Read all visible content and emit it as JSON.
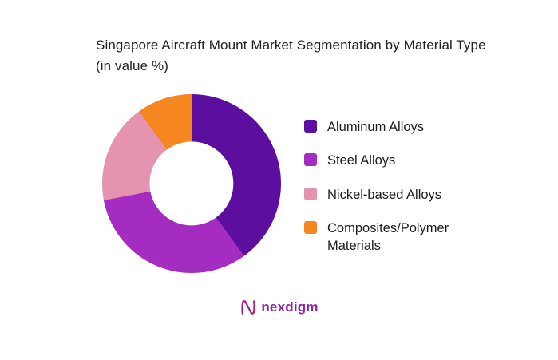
{
  "page": {
    "background": "#ffffff"
  },
  "chart_data": {
    "type": "pie",
    "variant": "donut",
    "title": "Singapore Aircraft Mount Market Segmentation by Material Type (in value %)",
    "categories": [
      "Aluminum Alloys",
      "Steel Alloys",
      "Nickel-based Alloys",
      "Composites/Polymer Materials"
    ],
    "values": [
      40,
      32,
      18,
      10
    ],
    "colors": [
      "#5C0E9E",
      "#A52CC0",
      "#E693B0",
      "#F6861F"
    ],
    "units": "percent",
    "start_angle_deg": 0,
    "direction": "clockwise",
    "inner_radius_ratio": 0.47,
    "legend_position": "right",
    "data_labels_shown": false
  },
  "footer": {
    "logo_text": "nexdigm",
    "logo_color": "#8E24AA",
    "logo_gradient_start": "#7B1FA2",
    "logo_gradient_end": "#D81B60"
  }
}
